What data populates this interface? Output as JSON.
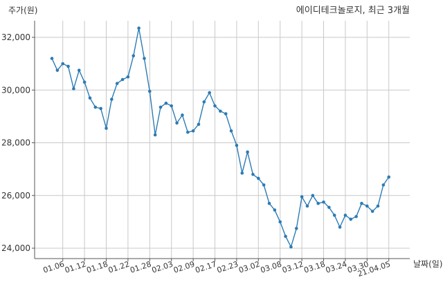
{
  "chart_data": {
    "type": "line",
    "title": "에이디테크놀로지, 최근 3개월",
    "ylabel": "주가(원)",
    "xlabel": "날짜(일)",
    "ylim": [
      23600,
      32600
    ],
    "yticks": [
      24000,
      26000,
      28000,
      30000,
      32000
    ],
    "ytick_labels": [
      "24,000",
      "26,000",
      "28,000",
      "30,000",
      "32,000"
    ],
    "xtick_labels": [
      "01.06",
      "01.12",
      "01.18",
      "01.22",
      "01.28",
      "02.03",
      "02.09",
      "02.17",
      "02.23",
      "03.02",
      "03.08",
      "03.12",
      "03.18",
      "03.24",
      "03.30",
      "21.04.05"
    ],
    "xtick_index": [
      2,
      6,
      10,
      14,
      18,
      22,
      26,
      30,
      34,
      38,
      42,
      46,
      50,
      54,
      58,
      62
    ],
    "grid": true,
    "color": "#2b7bb5",
    "series": [
      {
        "values": [
          31200,
          30750,
          31000,
          30900,
          30050,
          30750,
          30300,
          29700,
          29350,
          29300,
          28550,
          29650,
          30250,
          30400,
          30500,
          31300,
          32350,
          31200,
          29950,
          28300,
          29350,
          29500,
          29400,
          28750,
          29050,
          28400,
          28450,
          28700,
          29550,
          29900,
          29400,
          29200,
          29100,
          28450,
          27900,
          26850,
          27650,
          26800,
          26650,
          26400,
          25700,
          25450,
          25000,
          24450,
          24050,
          24750,
          25950,
          25600,
          26000,
          25700,
          25750,
          25550,
          25250,
          24800,
          25250,
          25100,
          25200,
          25700,
          25600,
          25400,
          25600,
          26400,
          26700
        ]
      }
    ]
  }
}
